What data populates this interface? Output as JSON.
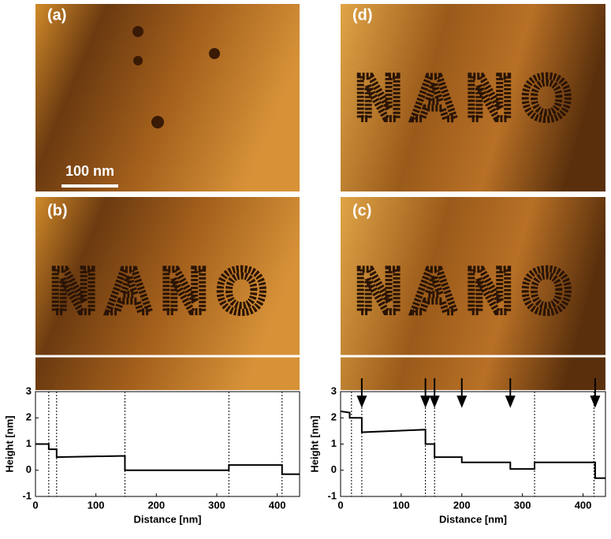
{
  "panels": {
    "labels": [
      "(a)",
      "(b)",
      "(c)",
      "(d)"
    ],
    "scale_bar": "100 nm",
    "pattern": "NANO"
  },
  "chart_data": [
    {
      "type": "line",
      "ylabel": "Height [nm]",
      "xlabel": "Distance [nm]",
      "xlim": [
        0,
        437
      ],
      "ylim": [
        -1,
        3
      ],
      "xticks": [
        0,
        100,
        200,
        300,
        400
      ],
      "yticks": [
        -1,
        0,
        1,
        2,
        3
      ],
      "x": [
        0,
        22,
        22,
        35,
        35,
        148,
        148,
        320,
        320,
        408,
        408,
        437
      ],
      "series": [
        {
          "color": "#000000",
          "values": [
            1.0,
            1.0,
            0.8,
            0.8,
            0.5,
            0.55,
            0.0,
            0.0,
            0.2,
            0.2,
            -0.15,
            -0.15
          ]
        }
      ],
      "vlines": [
        22,
        35,
        148,
        320,
        408
      ],
      "arrows": []
    },
    {
      "type": "line",
      "ylabel": "Height [nm]",
      "xlabel": "Distance [nm]",
      "xlim": [
        0,
        437
      ],
      "ylim": [
        -1,
        3
      ],
      "xticks": [
        0,
        100,
        200,
        300,
        400
      ],
      "yticks": [
        -1,
        0,
        1,
        2,
        3
      ],
      "x": [
        0,
        15,
        15,
        35,
        35,
        140,
        140,
        155,
        155,
        200,
        200,
        280,
        280,
        320,
        320,
        420,
        420,
        437
      ],
      "series": [
        {
          "color": "#000000",
          "values": [
            2.25,
            2.2,
            2.0,
            2.0,
            1.45,
            1.55,
            1.0,
            1.0,
            0.5,
            0.5,
            0.3,
            0.3,
            0.05,
            0.05,
            0.3,
            0.3,
            -0.3,
            -0.3
          ]
        }
      ],
      "vlines": [
        18,
        35,
        140,
        155,
        320,
        418
      ],
      "arrows": [
        35,
        140,
        155,
        200,
        280,
        420
      ]
    }
  ]
}
